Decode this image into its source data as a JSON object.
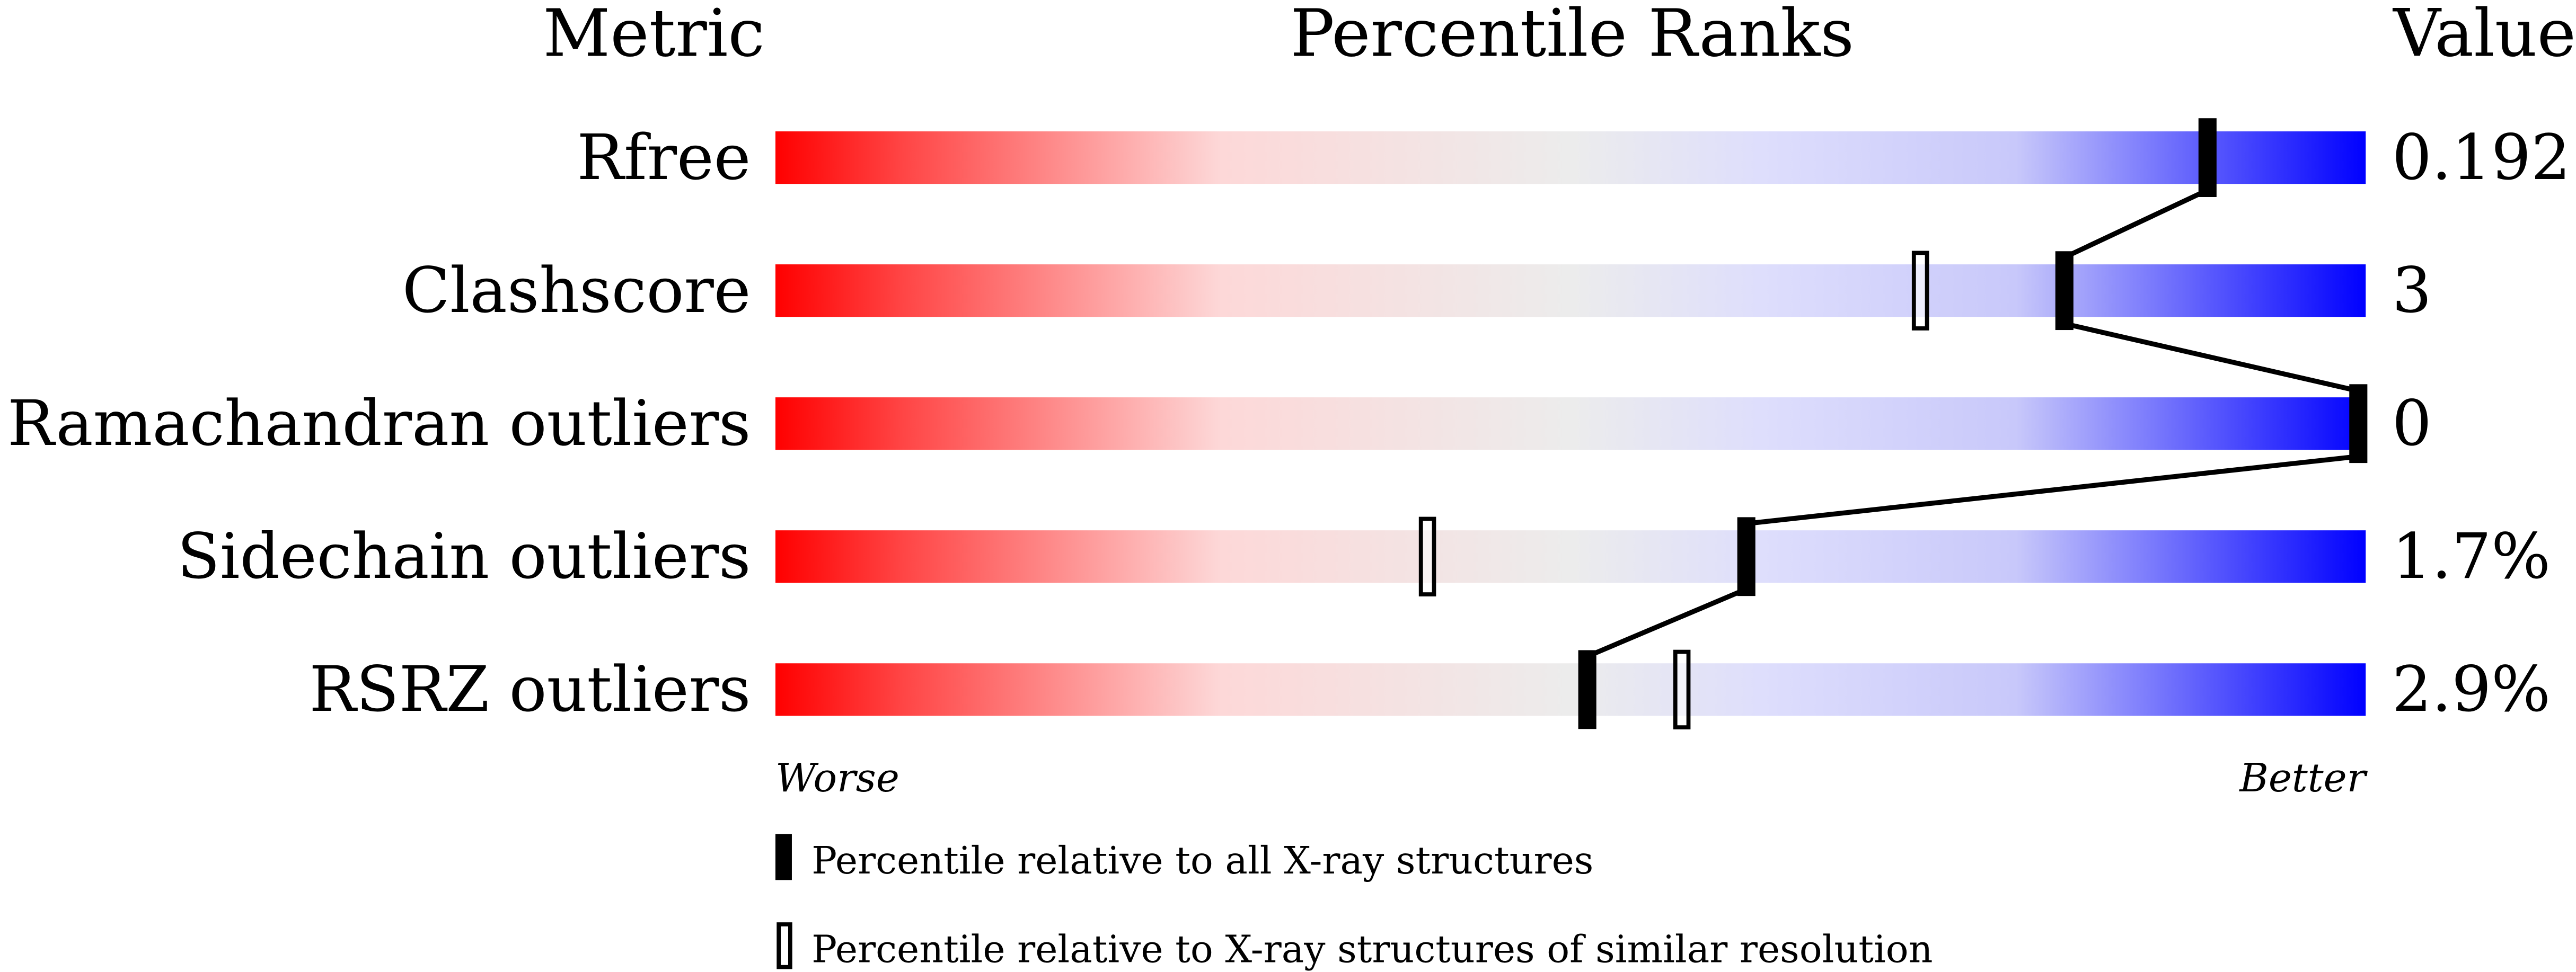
{
  "chart_data": {
    "type": "bar",
    "headers": {
      "metric": "Metric",
      "ranks": "Percentile Ranks",
      "value": "Value"
    },
    "metrics": [
      {
        "name": "Rfree",
        "value": "0.192",
        "percentile_all": 90,
        "percentile_similar": null
      },
      {
        "name": "Clashscore",
        "value": "3",
        "percentile_all": 81,
        "percentile_similar": 72
      },
      {
        "name": "Ramachandran outliers",
        "value": "0",
        "percentile_all": 100,
        "percentile_similar": null
      },
      {
        "name": "Sidechain outliers",
        "value": "1.7%",
        "percentile_all": 61,
        "percentile_similar": 41
      },
      {
        "name": "RSRZ outliers",
        "value": "2.9%",
        "percentile_all": 51,
        "percentile_similar": 57
      }
    ],
    "xlim": [
      0,
      100
    ],
    "axis_left_label": "Worse",
    "axis_right_label": "Better",
    "legend": [
      {
        "marker": "filled",
        "label": "Percentile relative to all X-ray structures"
      },
      {
        "marker": "open",
        "label": "Percentile relative to X-ray structures of similar resolution"
      }
    ],
    "colors": {
      "worse": "#ff0000",
      "mid": "#eeeeee",
      "better": "#0000ff"
    }
  }
}
